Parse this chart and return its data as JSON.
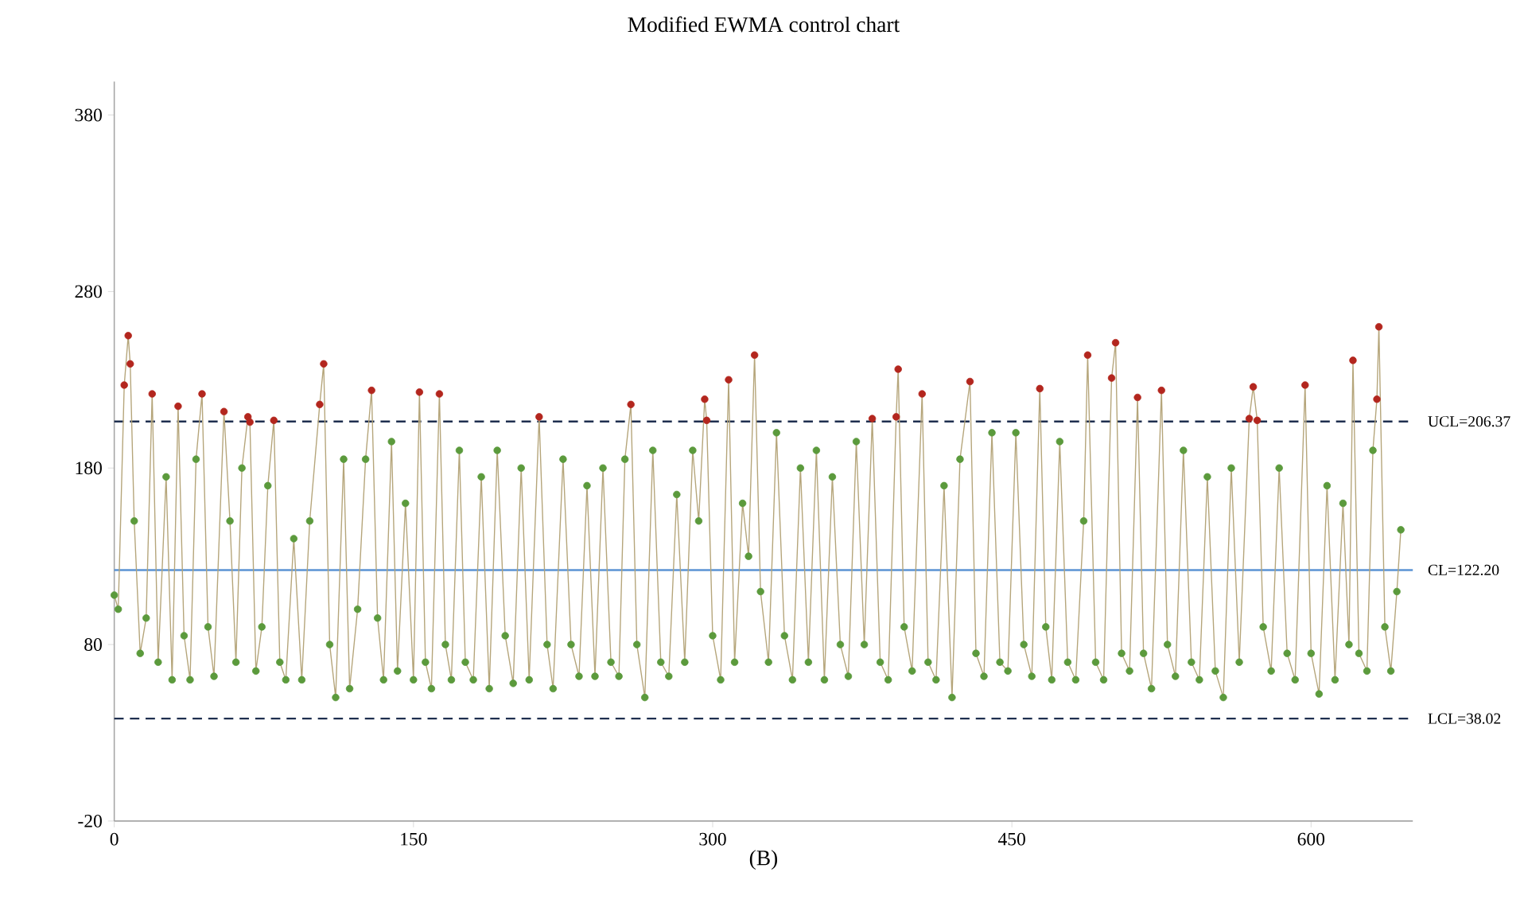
{
  "chart_data": {
    "type": "line",
    "title": "Modified EWMA  control chart",
    "xlabel": "(B)",
    "xlim": [
      0,
      651
    ],
    "ylim": [
      -20,
      399
    ],
    "xticks": [
      0,
      150,
      300,
      450,
      600
    ],
    "yticks": [
      -20,
      80,
      180,
      280,
      380
    ],
    "grid": false,
    "series": [
      {
        "color": "#b5a57a",
        "x": [
          0,
          2,
          5,
          7,
          8,
          10,
          13,
          16,
          19,
          22,
          26,
          29,
          32,
          35,
          38,
          41,
          44,
          47,
          50,
          55,
          58,
          61,
          64,
          67,
          68,
          71,
          74,
          77,
          80,
          83,
          86,
          90,
          94,
          98,
          103,
          105,
          108,
          111,
          115,
          118,
          122,
          126,
          129,
          132,
          135,
          139,
          142,
          146,
          150,
          153,
          156,
          159,
          163,
          166,
          169,
          173,
          176,
          180,
          184,
          188,
          192,
          196,
          200,
          204,
          208,
          213,
          217,
          220,
          225,
          229,
          233,
          237,
          241,
          245,
          249,
          253,
          256,
          259,
          262,
          266,
          270,
          274,
          278,
          282,
          286,
          290,
          293,
          296,
          297,
          300,
          304,
          308,
          311,
          315,
          318,
          321,
          324,
          328,
          332,
          336,
          340,
          344,
          348,
          352,
          356,
          360,
          364,
          368,
          372,
          376,
          380,
          384,
          388,
          392,
          393,
          396,
          400,
          405,
          408,
          412,
          416,
          420,
          424,
          429,
          432,
          436,
          440,
          444,
          448,
          452,
          456,
          460,
          464,
          467,
          470,
          474,
          478,
          482,
          486,
          488,
          492,
          496,
          500,
          502,
          505,
          509,
          513,
          516,
          520,
          525,
          528,
          532,
          536,
          540,
          544,
          548,
          552,
          556,
          560,
          564,
          569,
          571,
          573,
          576,
          580,
          584,
          588,
          592,
          597,
          600,
          604,
          608,
          612,
          616,
          619,
          621,
          624,
          628,
          631,
          633,
          634,
          637,
          640,
          643,
          645
        ],
        "values": [
          108,
          100,
          227,
          255,
          239,
          150,
          75,
          95,
          222,
          70,
          175,
          60,
          215,
          85,
          60,
          185,
          222,
          90,
          62,
          212,
          150,
          70,
          180,
          209,
          206,
          65,
          90,
          170,
          207,
          70,
          60,
          140,
          60,
          150,
          216,
          239,
          80,
          50,
          185,
          55,
          100,
          185,
          224,
          95,
          60,
          195,
          65,
          160,
          60,
          223,
          70,
          55,
          222,
          80,
          60,
          190,
          70,
          60,
          175,
          55,
          190,
          85,
          58,
          180,
          60,
          209,
          80,
          55,
          185,
          80,
          62,
          170,
          62,
          180,
          70,
          62,
          185,
          216,
          80,
          50,
          190,
          70,
          62,
          165,
          70,
          190,
          150,
          219,
          207,
          85,
          60,
          230,
          70,
          160,
          130,
          244,
          110,
          70,
          200,
          85,
          60,
          180,
          70,
          190,
          60,
          175,
          80,
          62,
          195,
          80,
          208,
          70,
          60,
          209,
          236,
          90,
          65,
          222,
          70,
          60,
          170,
          50,
          185,
          229,
          75,
          62,
          200,
          70,
          65,
          200,
          80,
          62,
          225,
          90,
          60,
          195,
          70,
          60,
          150,
          244,
          70,
          60,
          231,
          251,
          75,
          65,
          220,
          75,
          55,
          224,
          80,
          62,
          190,
          70,
          60,
          175,
          65,
          50,
          180,
          70,
          208,
          226,
          207,
          90,
          65,
          180,
          75,
          60,
          227,
          75,
          52,
          170,
          60,
          160,
          80,
          241,
          75,
          65,
          190,
          219,
          260,
          90,
          65,
          110,
          145
        ]
      },
      {
        "type": "scatter",
        "marker": "circle",
        "color": "#5b9a3c",
        "x": [
          0,
          2,
          10,
          13,
          16,
          22,
          26,
          29,
          35,
          38,
          41,
          47,
          50,
          58,
          61,
          64,
          71,
          74,
          77,
          83,
          86,
          90,
          94,
          98,
          108,
          111,
          115,
          118,
          122,
          126,
          132,
          135,
          139,
          142,
          146,
          150,
          156,
          159,
          166,
          169,
          173,
          176,
          180,
          184,
          188,
          192,
          196,
          200,
          204,
          208,
          217,
          220,
          225,
          229,
          233,
          237,
          241,
          245,
          249,
          253,
          256,
          262,
          266,
          270,
          274,
          278,
          282,
          286,
          290,
          293,
          300,
          304,
          311,
          315,
          318,
          324,
          328,
          332,
          336,
          340,
          344,
          348,
          352,
          356,
          360,
          364,
          368,
          372,
          376,
          384,
          388,
          396,
          400,
          408,
          412,
          416,
          420,
          424,
          432,
          436,
          440,
          444,
          448,
          452,
          456,
          460,
          467,
          470,
          474,
          478,
          482,
          486,
          492,
          496,
          505,
          509,
          516,
          520,
          528,
          532,
          536,
          540,
          544,
          548,
          552,
          556,
          560,
          564,
          576,
          580,
          584,
          588,
          592,
          600,
          604,
          608,
          612,
          616,
          619,
          624,
          628,
          631,
          637,
          640,
          643,
          645
        ],
        "values": [
          108,
          100,
          150,
          75,
          95,
          70,
          175,
          60,
          85,
          60,
          185,
          90,
          62,
          150,
          70,
          180,
          65,
          90,
          170,
          70,
          60,
          140,
          60,
          150,
          80,
          50,
          185,
          55,
          100,
          185,
          95,
          60,
          195,
          65,
          160,
          60,
          70,
          55,
          80,
          60,
          190,
          70,
          60,
          175,
          55,
          190,
          85,
          58,
          180,
          60,
          80,
          55,
          185,
          80,
          62,
          170,
          62,
          180,
          70,
          62,
          185,
          80,
          50,
          190,
          70,
          62,
          165,
          70,
          190,
          150,
          85,
          60,
          70,
          160,
          130,
          110,
          70,
          200,
          85,
          60,
          180,
          70,
          190,
          60,
          175,
          80,
          62,
          195,
          80,
          70,
          60,
          90,
          65,
          70,
          60,
          170,
          50,
          185,
          75,
          62,
          200,
          70,
          65,
          200,
          80,
          62,
          90,
          60,
          195,
          70,
          60,
          150,
          70,
          60,
          75,
          65,
          75,
          55,
          80,
          62,
          190,
          70,
          60,
          175,
          65,
          50,
          180,
          70,
          90,
          65,
          180,
          75,
          60,
          75,
          52,
          170,
          60,
          160,
          80,
          75,
          65,
          190,
          90,
          65,
          110,
          145
        ]
      },
      {
        "type": "scatter",
        "marker": "circle",
        "color": "#b3261e",
        "x": [
          5,
          7,
          8,
          19,
          32,
          44,
          55,
          67,
          68,
          80,
          103,
          105,
          129,
          153,
          163,
          213,
          259,
          296,
          297,
          308,
          321,
          380,
          392,
          393,
          405,
          429,
          464,
          488,
          500,
          502,
          513,
          525,
          569,
          571,
          573,
          597,
          621,
          633,
          634
        ],
        "values": [
          227,
          255,
          239,
          222,
          215,
          222,
          212,
          209,
          206,
          207,
          216,
          239,
          224,
          223,
          222,
          209,
          216,
          219,
          207,
          230,
          244,
          208,
          209,
          236,
          222,
          229,
          225,
          244,
          231,
          251,
          220,
          224,
          208,
          226,
          207,
          227,
          241,
          219,
          260
        ]
      }
    ],
    "ref_lines": [
      {
        "axis": "y",
        "value": 206.37,
        "label": "UCL=206.37",
        "color": "#1f2f4f",
        "line_style": "dashed"
      },
      {
        "axis": "y",
        "value": 122.2,
        "label": "CL=122.20",
        "color": "#5b93d3",
        "line_style": "solid"
      },
      {
        "axis": "y",
        "value": 38.02,
        "label": "LCL=38.02",
        "color": "#1f2f4f",
        "line_style": "dashed"
      }
    ]
  }
}
